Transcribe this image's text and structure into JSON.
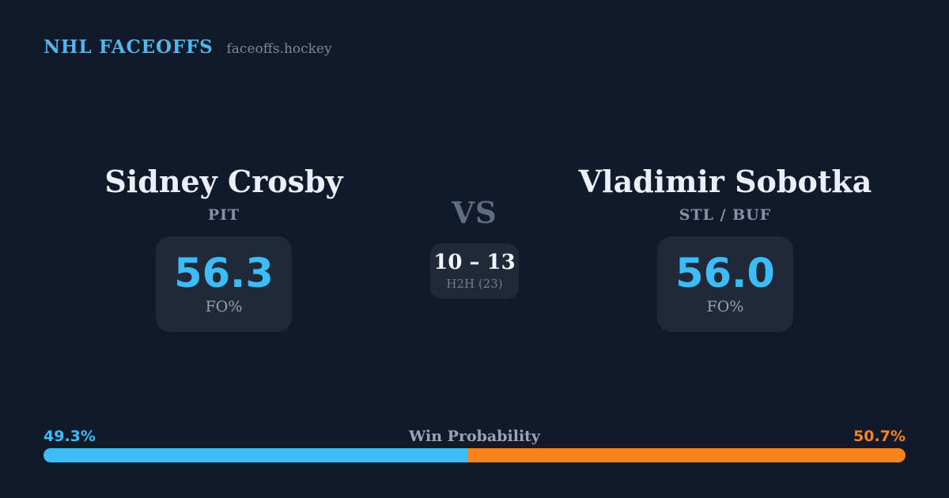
{
  "header": {
    "brand": "NHL FACEOFFS",
    "site": "faceoffs.hockey"
  },
  "matchup": {
    "left": {
      "name": "Sidney Crosby",
      "team": "PIT",
      "stat_value": "56.3",
      "stat_label": "FO%"
    },
    "right": {
      "name": "Vladimir Sobotka",
      "team": "STL / BUF",
      "stat_value": "56.0",
      "stat_label": "FO%"
    },
    "vs_label": "VS",
    "h2h": {
      "score": "10 – 13",
      "label": "H2H (23)"
    }
  },
  "win_probability": {
    "title": "Win Probability",
    "left_pct_label": "49.3%",
    "right_pct_label": "50.7%",
    "left_value": 49.3,
    "right_value": 50.7
  },
  "colors": {
    "background": "#111A2B",
    "card": "#202938",
    "accent_blue": "#3CBDF8",
    "accent_orange": "#F8831E",
    "brand_blue": "#55B4E8"
  }
}
